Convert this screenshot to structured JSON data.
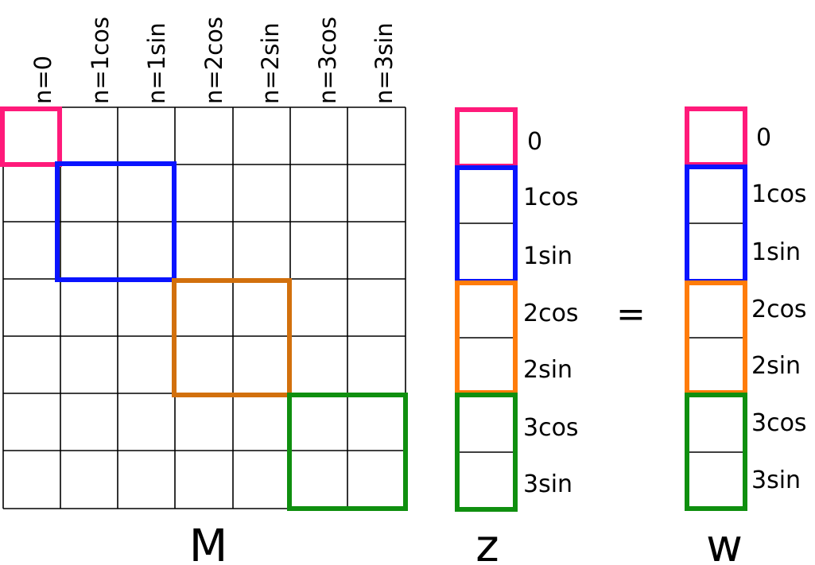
{
  "matrix": {
    "name": "M",
    "columns": [
      "n=0",
      "n=1cos",
      "n=1sin",
      "n=2cos",
      "n=2sin",
      "n=3cos",
      "n=3sin"
    ]
  },
  "vector_z": {
    "name": "z",
    "rows": [
      "0",
      "1cos",
      "1sin",
      "2cos",
      "2sin",
      "3cos",
      "3sin"
    ]
  },
  "vector_w": {
    "name": "w",
    "rows": [
      "0",
      "1cos",
      "1sin",
      "2cos",
      "2sin",
      "3cos",
      "3sin"
    ]
  },
  "equals": "=",
  "blocks": [
    {
      "rows": [
        0
      ],
      "color": "#ff1a7a"
    },
    {
      "rows": [
        1,
        2
      ],
      "color": "#0a14ff"
    },
    {
      "rows": [
        3,
        4
      ],
      "color_matrix": "#d2700d",
      "color_vector": "#ff7c0a"
    },
    {
      "rows": [
        5,
        6
      ],
      "color": "#0f8f0f"
    }
  ]
}
